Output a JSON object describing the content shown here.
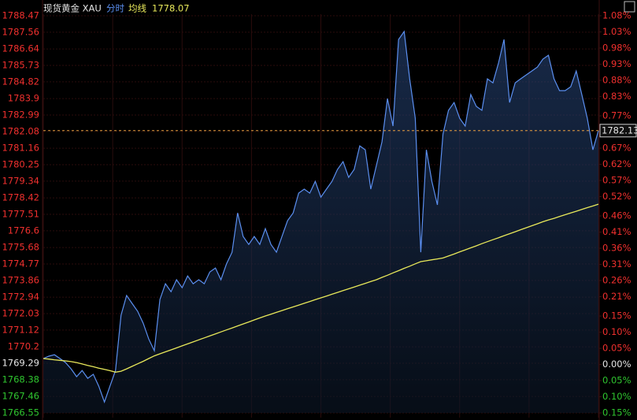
{
  "chart_data": {
    "type": "line",
    "title": "现货黄金 XAU",
    "up_color": "#f0302e",
    "down_color": "#2fc52f",
    "flat_color": "#e6e6e6",
    "ylim": [
      1766.55,
      1788.47
    ],
    "yticks": [
      1788.47,
      1787.56,
      1786.64,
      1785.73,
      1784.82,
      1783.9,
      1782.99,
      1782.08,
      1781.16,
      1780.25,
      1779.34,
      1778.42,
      1777.51,
      1776.6,
      1775.68,
      1774.77,
      1773.86,
      1772.94,
      1772.03,
      1771.12,
      1770.2,
      1769.29,
      1768.38,
      1767.46,
      1766.55
    ],
    "y2lim": [
      -0.15,
      1.08
    ],
    "y2ticks": [
      {
        "value": 1.08,
        "label": "1.08%"
      },
      {
        "value": 1.03,
        "label": "1.03%"
      },
      {
        "value": 0.98,
        "label": "0.98%"
      },
      {
        "value": 0.93,
        "label": "0.93%"
      },
      {
        "value": 0.88,
        "label": "0.88%"
      },
      {
        "value": 0.83,
        "label": "0.83%"
      },
      {
        "value": 0.77,
        "label": "0.77%"
      },
      {
        "value": 0.72,
        "label": "0.72%"
      },
      {
        "value": 0.67,
        "label": "0.67%"
      },
      {
        "value": 0.62,
        "label": "0.62%"
      },
      {
        "value": 0.57,
        "label": "0.57%"
      },
      {
        "value": 0.52,
        "label": "0.52%"
      },
      {
        "value": 0.46,
        "label": "0.46%"
      },
      {
        "value": 0.41,
        "label": "0.41%"
      },
      {
        "value": 0.36,
        "label": "0.36%"
      },
      {
        "value": 0.31,
        "label": "0.31%"
      },
      {
        "value": 0.26,
        "label": "0.26%"
      },
      {
        "value": 0.21,
        "label": "0.21%"
      },
      {
        "value": 0.15,
        "label": "0.15%"
      },
      {
        "value": 0.1,
        "label": "0.10%"
      },
      {
        "value": 0.05,
        "label": "0.05%"
      },
      {
        "value": 0,
        "label": "0.00%"
      },
      {
        "value": -0.05,
        "label": "0.05%"
      },
      {
        "value": -0.1,
        "label": "0.10%"
      },
      {
        "value": -0.15,
        "label": "0.15%"
      }
    ],
    "series": [
      {
        "name": "分时",
        "color": "#5b8ff0",
        "values": [
          1769.55,
          1769.68,
          1769.76,
          1769.55,
          1769.33,
          1768.98,
          1768.55,
          1768.89,
          1768.46,
          1768.68,
          1768.02,
          1767.15,
          1768.02,
          1768.89,
          1771.94,
          1773.03,
          1772.59,
          1772.16,
          1771.5,
          1770.63,
          1769.98,
          1772.81,
          1773.68,
          1773.24,
          1773.9,
          1773.46,
          1774.11,
          1773.68,
          1773.9,
          1773.68,
          1774.33,
          1774.55,
          1773.9,
          1774.77,
          1775.42,
          1777.59,
          1776.29,
          1775.85,
          1776.29,
          1775.85,
          1776.72,
          1775.85,
          1775.42,
          1776.29,
          1777.16,
          1777.59,
          1778.68,
          1778.9,
          1778.68,
          1779.33,
          1778.46,
          1778.9,
          1779.33,
          1779.99,
          1780.42,
          1779.55,
          1779.99,
          1781.29,
          1781.07,
          1778.9,
          1780.2,
          1781.51,
          1783.9,
          1782.38,
          1787.16,
          1787.6,
          1784.99,
          1782.81,
          1775.42,
          1781.07,
          1779.33,
          1778.03,
          1781.94,
          1783.25,
          1783.68,
          1782.81,
          1782.38,
          1784.12,
          1783.47,
          1783.25,
          1784.99,
          1784.77,
          1785.86,
          1787.16,
          1783.68,
          1784.77,
          1784.99,
          1785.21,
          1785.42,
          1785.64,
          1786.08,
          1786.29,
          1784.99,
          1784.34,
          1784.34,
          1784.55,
          1785.42,
          1784.12,
          1782.81,
          1781.07,
          1782.13
        ]
      },
      {
        "name": "均线",
        "color": "#e8e85a",
        "values": [
          1769.55,
          1769.52,
          1769.48,
          1769.45,
          1769.42,
          1769.38,
          1769.33,
          1769.25,
          1769.17,
          1769.1,
          1769.02,
          1768.95,
          1768.88,
          1768.8,
          1768.85,
          1768.98,
          1769.12,
          1769.26,
          1769.4,
          1769.55,
          1769.7,
          1769.81,
          1769.92,
          1770.03,
          1770.14,
          1770.25,
          1770.36,
          1770.47,
          1770.58,
          1770.69,
          1770.8,
          1770.91,
          1771.02,
          1771.13,
          1771.24,
          1771.35,
          1771.46,
          1771.57,
          1771.68,
          1771.79,
          1771.9,
          1772.0,
          1772.1,
          1772.2,
          1772.3,
          1772.4,
          1772.5,
          1772.6,
          1772.7,
          1772.8,
          1772.9,
          1773.0,
          1773.1,
          1773.2,
          1773.3,
          1773.4,
          1773.5,
          1773.6,
          1773.7,
          1773.8,
          1773.9,
          1774.03,
          1774.15,
          1774.28,
          1774.4,
          1774.53,
          1774.65,
          1774.78,
          1774.9,
          1774.95,
          1775.0,
          1775.05,
          1775.1,
          1775.21,
          1775.32,
          1775.44,
          1775.55,
          1775.66,
          1775.77,
          1775.89,
          1776.0,
          1776.11,
          1776.22,
          1776.33,
          1776.44,
          1776.55,
          1776.66,
          1776.77,
          1776.88,
          1776.99,
          1777.1,
          1777.2,
          1777.29,
          1777.39,
          1777.49,
          1777.59,
          1777.68,
          1777.78,
          1777.88,
          1777.97,
          1778.07
        ]
      }
    ]
  }
}
